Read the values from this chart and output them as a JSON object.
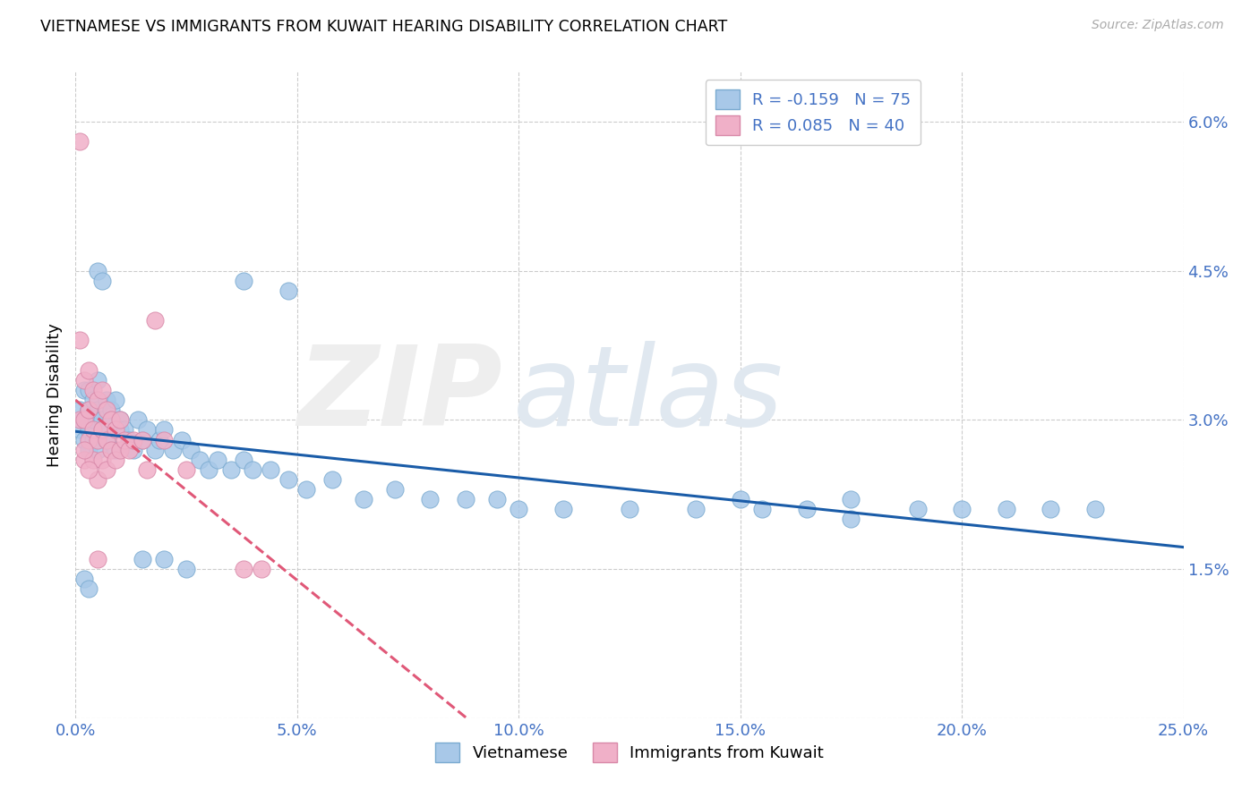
{
  "title": "VIETNAMESE VS IMMIGRANTS FROM KUWAIT HEARING DISABILITY CORRELATION CHART",
  "source": "Source: ZipAtlas.com",
  "ylabel": "Hearing Disability",
  "xlim": [
    0.0,
    0.25
  ],
  "ylim": [
    0.0,
    0.065
  ],
  "x_ticks": [
    0.0,
    0.05,
    0.1,
    0.15,
    0.2,
    0.25
  ],
  "y_ticks": [
    0.0,
    0.015,
    0.03,
    0.045,
    0.06
  ],
  "x_tick_labels": [
    "0.0%",
    "5.0%",
    "10.0%",
    "15.0%",
    "20.0%",
    "25.0%"
  ],
  "y_tick_labels": [
    "",
    "1.5%",
    "3.0%",
    "4.5%",
    "6.0%"
  ],
  "blue_color": "#a8c8e8",
  "blue_edge": "#7aaad0",
  "pink_color": "#f0b0c8",
  "pink_edge": "#d888a8",
  "blue_line_color": "#1a5ca8",
  "pink_line_color": "#e05878",
  "tick_color": "#4472c4",
  "legend1_text": "R = -0.159   N = 75",
  "legend2_text": "R = 0.085   N = 40",
  "bottom_legend1": "Vietnamese",
  "bottom_legend2": "Immigrants from Kuwait",
  "grid_color": "#cccccc",
  "blue_x": [
    0.001,
    0.001,
    0.002,
    0.002,
    0.002,
    0.003,
    0.003,
    0.003,
    0.003,
    0.004,
    0.004,
    0.004,
    0.005,
    0.005,
    0.005,
    0.006,
    0.006,
    0.007,
    0.007,
    0.008,
    0.008,
    0.009,
    0.009,
    0.01,
    0.01,
    0.011,
    0.012,
    0.013,
    0.014,
    0.015,
    0.016,
    0.018,
    0.019,
    0.02,
    0.022,
    0.024,
    0.026,
    0.028,
    0.03,
    0.032,
    0.035,
    0.038,
    0.04,
    0.044,
    0.048,
    0.052,
    0.058,
    0.065,
    0.072,
    0.08,
    0.088,
    0.095,
    0.1,
    0.11,
    0.125,
    0.14,
    0.155,
    0.165,
    0.175,
    0.19,
    0.2,
    0.21,
    0.22,
    0.23,
    0.005,
    0.006,
    0.038,
    0.048,
    0.15,
    0.175,
    0.002,
    0.003,
    0.015,
    0.02,
    0.025
  ],
  "blue_y": [
    0.031,
    0.029,
    0.033,
    0.028,
    0.03,
    0.029,
    0.031,
    0.027,
    0.033,
    0.03,
    0.028,
    0.032,
    0.034,
    0.027,
    0.031,
    0.03,
    0.029,
    0.032,
    0.028,
    0.03,
    0.031,
    0.027,
    0.032,
    0.03,
    0.029,
    0.029,
    0.028,
    0.027,
    0.03,
    0.028,
    0.029,
    0.027,
    0.028,
    0.029,
    0.027,
    0.028,
    0.027,
    0.026,
    0.025,
    0.026,
    0.025,
    0.026,
    0.025,
    0.025,
    0.024,
    0.023,
    0.024,
    0.022,
    0.023,
    0.022,
    0.022,
    0.022,
    0.021,
    0.021,
    0.021,
    0.021,
    0.021,
    0.021,
    0.02,
    0.021,
    0.021,
    0.021,
    0.021,
    0.021,
    0.045,
    0.044,
    0.044,
    0.043,
    0.022,
    0.022,
    0.014,
    0.013,
    0.016,
    0.016,
    0.015
  ],
  "pink_x": [
    0.001,
    0.001,
    0.002,
    0.002,
    0.002,
    0.003,
    0.003,
    0.003,
    0.004,
    0.004,
    0.004,
    0.005,
    0.005,
    0.005,
    0.006,
    0.006,
    0.006,
    0.007,
    0.007,
    0.007,
    0.008,
    0.008,
    0.009,
    0.009,
    0.01,
    0.01,
    0.011,
    0.012,
    0.013,
    0.015,
    0.016,
    0.018,
    0.02,
    0.025,
    0.038,
    0.042,
    0.001,
    0.002,
    0.003,
    0.005
  ],
  "pink_y": [
    0.058,
    0.03,
    0.034,
    0.03,
    0.026,
    0.035,
    0.031,
    0.028,
    0.033,
    0.029,
    0.026,
    0.032,
    0.028,
    0.024,
    0.033,
    0.029,
    0.026,
    0.031,
    0.028,
    0.025,
    0.03,
    0.027,
    0.029,
    0.026,
    0.03,
    0.027,
    0.028,
    0.027,
    0.028,
    0.028,
    0.025,
    0.04,
    0.028,
    0.025,
    0.015,
    0.015,
    0.038,
    0.027,
    0.025,
    0.016
  ]
}
